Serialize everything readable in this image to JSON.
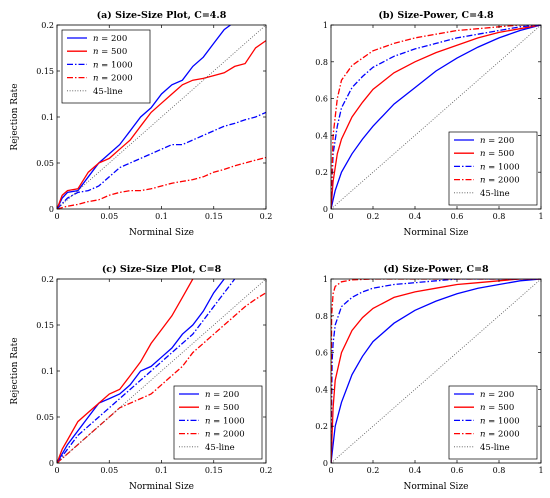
{
  "chart_data": [
    {
      "type": "line",
      "title": "(a) Size-Size Plot, C=4.8",
      "xlabel": "Norminal Size",
      "ylabel": "Rejection Rate",
      "xlim": [
        0,
        0.2
      ],
      "ylim": [
        0,
        0.2
      ],
      "xticks": [
        "0",
        "0.05",
        "0.1",
        "0.15",
        "0.2"
      ],
      "yticks": [
        "0",
        "0.05",
        "0.1",
        "0.15",
        "0.2"
      ],
      "grid": false,
      "legend": "top-left",
      "series": [
        {
          "name_var": "n",
          "name_eq": "= 200",
          "color": "#0000ff",
          "dash": "solid",
          "x": [
            0,
            0.005,
            0.01,
            0.02,
            0.03,
            0.04,
            0.05,
            0.06,
            0.07,
            0.08,
            0.09,
            0.1,
            0.11,
            0.12,
            0.13,
            0.14,
            0.15,
            0.16,
            0.166
          ],
          "y": [
            0,
            0.012,
            0.018,
            0.02,
            0.035,
            0.05,
            0.06,
            0.07,
            0.085,
            0.1,
            0.11,
            0.125,
            0.135,
            0.14,
            0.155,
            0.165,
            0.18,
            0.195,
            0.2
          ]
        },
        {
          "name_var": "n",
          "name_eq": "= 500",
          "color": "#ff0000",
          "dash": "solid",
          "x": [
            0,
            0.005,
            0.01,
            0.02,
            0.03,
            0.04,
            0.05,
            0.06,
            0.07,
            0.08,
            0.09,
            0.1,
            0.11,
            0.12,
            0.13,
            0.14,
            0.15,
            0.16,
            0.17,
            0.18,
            0.19,
            0.2
          ],
          "y": [
            0,
            0.015,
            0.02,
            0.022,
            0.04,
            0.05,
            0.055,
            0.065,
            0.075,
            0.09,
            0.105,
            0.115,
            0.125,
            0.135,
            0.14,
            0.142,
            0.145,
            0.148,
            0.155,
            0.158,
            0.175,
            0.183
          ]
        },
        {
          "name_var": "n",
          "name_eq": "= 1000",
          "color": "#0000ff",
          "dash": "dashdot",
          "x": [
            0,
            0.01,
            0.02,
            0.03,
            0.04,
            0.05,
            0.06,
            0.07,
            0.08,
            0.09,
            0.1,
            0.11,
            0.12,
            0.13,
            0.14,
            0.15,
            0.16,
            0.17,
            0.18,
            0.19,
            0.2
          ],
          "y": [
            0,
            0.012,
            0.018,
            0.02,
            0.025,
            0.035,
            0.045,
            0.05,
            0.055,
            0.06,
            0.065,
            0.07,
            0.07,
            0.075,
            0.08,
            0.085,
            0.09,
            0.093,
            0.097,
            0.1,
            0.105
          ]
        },
        {
          "name_var": "n",
          "name_eq": "= 2000",
          "color": "#ff0000",
          "dash": "dashdot",
          "x": [
            0,
            0.01,
            0.02,
            0.03,
            0.04,
            0.05,
            0.06,
            0.07,
            0.08,
            0.09,
            0.1,
            0.11,
            0.12,
            0.13,
            0.14,
            0.15,
            0.16,
            0.17,
            0.18,
            0.19,
            0.2
          ],
          "y": [
            0,
            0.003,
            0.005,
            0.008,
            0.01,
            0.015,
            0.018,
            0.02,
            0.02,
            0.022,
            0.025,
            0.028,
            0.03,
            0.032,
            0.035,
            0.04,
            0.043,
            0.047,
            0.05,
            0.053,
            0.056
          ]
        },
        {
          "name": "45-line",
          "color": "#555555",
          "dash": "dotted",
          "x": [
            0,
            0.2
          ],
          "y": [
            0,
            0.2
          ]
        }
      ]
    },
    {
      "type": "line",
      "title": "(b) Size-Power, C=4.8",
      "xlabel": "Norminal Size",
      "ylabel": "",
      "xlim": [
        0,
        1
      ],
      "ylim": [
        0,
        1
      ],
      "xticks": [
        "0",
        "0.2",
        "0.4",
        "0.6",
        "0.8",
        "1"
      ],
      "yticks": [
        "0",
        "0.2",
        "0.4",
        "0.6",
        "0.8",
        "1"
      ],
      "grid": false,
      "legend": "bottom-right",
      "series": [
        {
          "name_var": "n",
          "name_eq": "= 200",
          "color": "#0000ff",
          "dash": "solid",
          "x": [
            0,
            0.02,
            0.05,
            0.1,
            0.15,
            0.2,
            0.3,
            0.4,
            0.5,
            0.6,
            0.7,
            0.8,
            0.9,
            1
          ],
          "y": [
            0,
            0.1,
            0.2,
            0.3,
            0.38,
            0.45,
            0.57,
            0.66,
            0.75,
            0.82,
            0.88,
            0.93,
            0.97,
            1
          ]
        },
        {
          "name_var": "n",
          "name_eq": "= 500",
          "color": "#ff0000",
          "dash": "solid",
          "x": [
            0,
            0.01,
            0.03,
            0.05,
            0.1,
            0.15,
            0.2,
            0.3,
            0.4,
            0.5,
            0.6,
            0.7,
            0.8,
            0.9,
            1
          ],
          "y": [
            0,
            0.15,
            0.3,
            0.38,
            0.5,
            0.58,
            0.65,
            0.74,
            0.8,
            0.85,
            0.89,
            0.93,
            0.96,
            0.98,
            1
          ]
        },
        {
          "name_var": "n",
          "name_eq": "= 1000",
          "color": "#0000ff",
          "dash": "dashdot",
          "x": [
            0,
            0.01,
            0.03,
            0.05,
            0.1,
            0.15,
            0.2,
            0.3,
            0.4,
            0.5,
            0.6,
            0.7,
            0.8,
            0.9,
            1
          ],
          "y": [
            0,
            0.3,
            0.45,
            0.55,
            0.66,
            0.72,
            0.77,
            0.83,
            0.87,
            0.9,
            0.93,
            0.95,
            0.97,
            0.99,
            1
          ]
        },
        {
          "name_var": "n",
          "name_eq": "= 2000",
          "color": "#ff0000",
          "dash": "dashdot",
          "x": [
            0,
            0.01,
            0.03,
            0.05,
            0.1,
            0.15,
            0.2,
            0.3,
            0.4,
            0.5,
            0.6,
            0.7,
            0.8,
            0.9,
            1
          ],
          "y": [
            0,
            0.4,
            0.6,
            0.7,
            0.78,
            0.82,
            0.86,
            0.9,
            0.93,
            0.95,
            0.97,
            0.98,
            0.99,
            1,
            1
          ]
        },
        {
          "name": "45-line",
          "color": "#555555",
          "dash": "dotted",
          "x": [
            0,
            1
          ],
          "y": [
            0,
            1
          ]
        }
      ]
    },
    {
      "type": "line",
      "title": "(c) Size-Size Plot, C=8",
      "xlabel": "Norminal Size",
      "ylabel": "Rejection Rate",
      "xlim": [
        0,
        0.2
      ],
      "ylim": [
        0,
        0.2
      ],
      "xticks": [
        "0",
        "0.05",
        "0.1",
        "0.15",
        "0.2"
      ],
      "yticks": [
        "0",
        "0.05",
        "0.1",
        "0.15",
        "0.2"
      ],
      "grid": false,
      "legend": "bottom-right",
      "series": [
        {
          "name_var": "n",
          "name_eq": "= 200",
          "color": "#0000ff",
          "dash": "solid",
          "x": [
            0,
            0.005,
            0.01,
            0.02,
            0.03,
            0.04,
            0.05,
            0.06,
            0.07,
            0.08,
            0.09,
            0.1,
            0.11,
            0.12,
            0.13,
            0.14,
            0.15,
            0.16
          ],
          "y": [
            0,
            0.01,
            0.02,
            0.035,
            0.05,
            0.065,
            0.07,
            0.075,
            0.085,
            0.1,
            0.105,
            0.115,
            0.125,
            0.14,
            0.15,
            0.165,
            0.185,
            0.2
          ]
        },
        {
          "name_var": "n",
          "name_eq": "= 500",
          "color": "#ff0000",
          "dash": "solid",
          "x": [
            0,
            0.005,
            0.01,
            0.02,
            0.03,
            0.04,
            0.05,
            0.06,
            0.07,
            0.08,
            0.09,
            0.1,
            0.11,
            0.12,
            0.13
          ],
          "y": [
            0,
            0.015,
            0.025,
            0.045,
            0.055,
            0.065,
            0.075,
            0.08,
            0.095,
            0.11,
            0.13,
            0.145,
            0.16,
            0.18,
            0.2
          ]
        },
        {
          "name_var": "n",
          "name_eq": "= 1000",
          "color": "#0000ff",
          "dash": "dashdot",
          "x": [
            0,
            0.01,
            0.02,
            0.03,
            0.04,
            0.05,
            0.06,
            0.07,
            0.08,
            0.09,
            0.1,
            0.11,
            0.12,
            0.13,
            0.14,
            0.15,
            0.16,
            0.17
          ],
          "y": [
            0,
            0.015,
            0.03,
            0.04,
            0.05,
            0.06,
            0.07,
            0.08,
            0.09,
            0.1,
            0.11,
            0.12,
            0.13,
            0.14,
            0.155,
            0.17,
            0.185,
            0.2
          ]
        },
        {
          "name_var": "n",
          "name_eq": "= 2000",
          "color": "#ff0000",
          "dash": "dashdot",
          "x": [
            0,
            0.01,
            0.02,
            0.03,
            0.04,
            0.05,
            0.06,
            0.07,
            0.08,
            0.09,
            0.1,
            0.11,
            0.12,
            0.13,
            0.14,
            0.15,
            0.16,
            0.17,
            0.18,
            0.19,
            0.2
          ],
          "y": [
            0,
            0.01,
            0.02,
            0.03,
            0.04,
            0.05,
            0.06,
            0.065,
            0.07,
            0.075,
            0.085,
            0.095,
            0.105,
            0.12,
            0.13,
            0.14,
            0.15,
            0.16,
            0.17,
            0.178,
            0.185
          ]
        },
        {
          "name": "45-line",
          "color": "#555555",
          "dash": "dotted",
          "x": [
            0,
            0.2
          ],
          "y": [
            0,
            0.2
          ]
        }
      ]
    },
    {
      "type": "line",
      "title": "(d) Size-Power, C=8",
      "xlabel": "Norminal Size",
      "ylabel": "",
      "xlim": [
        0,
        1
      ],
      "ylim": [
        0,
        1
      ],
      "xticks": [
        "0",
        "0.2",
        "0.4",
        "0.6",
        "0.8",
        "1"
      ],
      "yticks": [
        "0",
        "0.2",
        "0.4",
        "0.6",
        "0.8",
        "1"
      ],
      "grid": false,
      "legend": "bottom-right",
      "series": [
        {
          "name_var": "n",
          "name_eq": "= 200",
          "color": "#0000ff",
          "dash": "solid",
          "x": [
            0,
            0.02,
            0.05,
            0.1,
            0.15,
            0.2,
            0.3,
            0.4,
            0.5,
            0.6,
            0.7,
            0.8,
            0.9,
            1
          ],
          "y": [
            0,
            0.2,
            0.33,
            0.48,
            0.58,
            0.66,
            0.76,
            0.83,
            0.88,
            0.92,
            0.95,
            0.97,
            0.99,
            1
          ]
        },
        {
          "name_var": "n",
          "name_eq": "= 500",
          "color": "#ff0000",
          "dash": "solid",
          "x": [
            0,
            0.01,
            0.02,
            0.05,
            0.1,
            0.15,
            0.2,
            0.3,
            0.4,
            0.5,
            0.6,
            0.7,
            0.8,
            0.9,
            1
          ],
          "y": [
            0,
            0.3,
            0.45,
            0.6,
            0.72,
            0.79,
            0.84,
            0.9,
            0.93,
            0.95,
            0.97,
            0.98,
            0.99,
            1,
            1
          ]
        },
        {
          "name_var": "n",
          "name_eq": "= 1000",
          "color": "#0000ff",
          "dash": "dashdot",
          "x": [
            0,
            0.005,
            0.01,
            0.02,
            0.05,
            0.1,
            0.15,
            0.2,
            0.3,
            0.4,
            0.5,
            0.6,
            0.8,
            1
          ],
          "y": [
            0,
            0.55,
            0.65,
            0.75,
            0.85,
            0.9,
            0.93,
            0.95,
            0.97,
            0.98,
            0.99,
            1,
            1,
            1
          ]
        },
        {
          "name_var": "n",
          "name_eq": "= 2000",
          "color": "#ff0000",
          "dash": "dashdot",
          "x": [
            0,
            0.003,
            0.01,
            0.02,
            0.05,
            0.1,
            0.2,
            0.4,
            0.6,
            0.8,
            1
          ],
          "y": [
            0,
            0.8,
            0.92,
            0.96,
            0.985,
            0.995,
            1,
            1,
            1,
            1,
            1
          ]
        },
        {
          "name": "45-line",
          "color": "#555555",
          "dash": "dotted",
          "x": [
            0,
            1
          ],
          "y": [
            0,
            1
          ]
        }
      ]
    }
  ]
}
